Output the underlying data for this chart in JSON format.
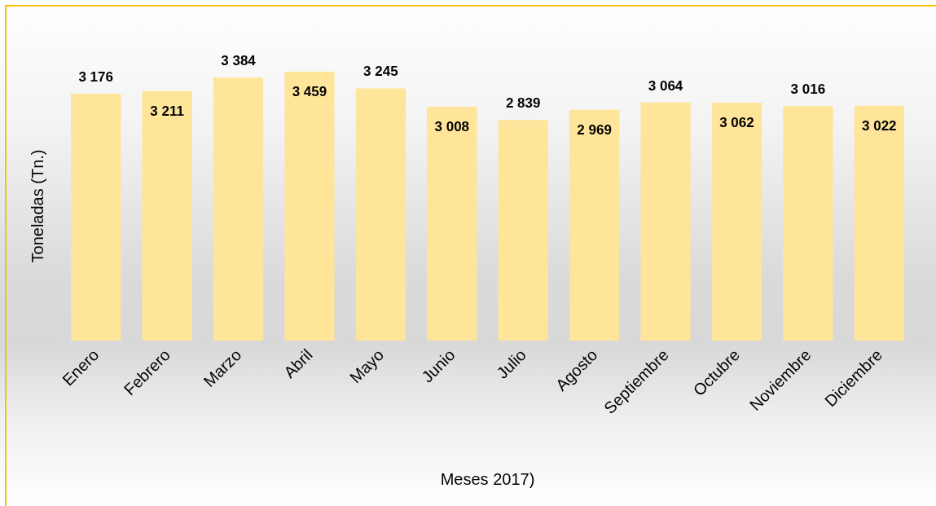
{
  "chart_data": {
    "type": "bar",
    "xlabel": "Meses 2017)",
    "ylabel": "Toneladas (Tn.)",
    "categories": [
      "Enero",
      "Febrero",
      "Marzo",
      "Abril",
      "Mayo",
      "Junio",
      "Julio",
      "Agosto",
      "Septiembre",
      "Octubre",
      "Noviembre",
      "Diciembre"
    ],
    "values": [
      3176,
      3211,
      3384,
      3459,
      3245,
      3008,
      2839,
      2969,
      3064,
      3062,
      3016,
      3022
    ],
    "value_labels": [
      "3 176",
      "3 211",
      "3 384",
      "3 459",
      "3 245",
      "3 008",
      "2 839",
      "2 969",
      "3 064",
      "3 062",
      "3 016",
      "3 022"
    ],
    "color": "#fee599",
    "tick_labels": "x"
  }
}
